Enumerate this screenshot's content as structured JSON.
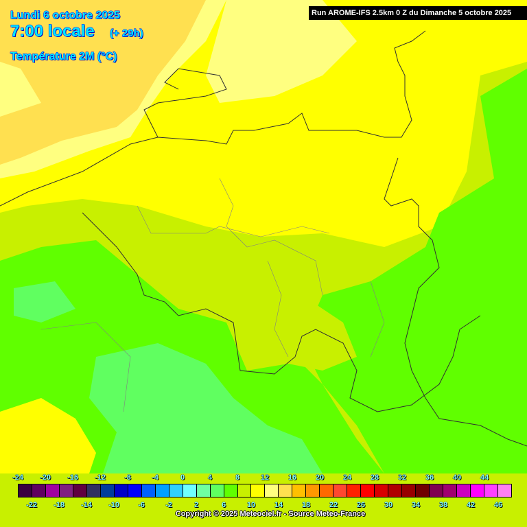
{
  "header": {
    "date": "Lundi 6 octobre 2025",
    "time": "7:00 locale",
    "offset": "(+ 29h)",
    "parameter": "Température 2M (°C)",
    "run": "Run AROME-IFS 2.5km 0 Z du Dimanche 5 octobre 2025"
  },
  "legend": {
    "top_labels": [
      "-24",
      "-20",
      "-16",
      "-12",
      "-8",
      "-4",
      "0",
      "4",
      "8",
      "12",
      "16",
      "20",
      "24",
      "28",
      "32",
      "36",
      "40",
      "44"
    ],
    "bottom_labels": [
      "-22",
      "-18",
      "-14",
      "-10",
      "-6",
      "-2",
      "2",
      "6",
      "10",
      "14",
      "18",
      "22",
      "26",
      "30",
      "34",
      "38",
      "42",
      "46"
    ],
    "colors": [
      "#3a0040",
      "#600060",
      "#a000a0",
      "#802080",
      "#600040",
      "#303060",
      "#003c9c",
      "#0000c8",
      "#0000ff",
      "#0060ff",
      "#00a0ff",
      "#30d0ff",
      "#70ffff",
      "#70ffa0",
      "#60ff60",
      "#60ff00",
      "#c8f000",
      "#ffff00",
      "#ffff80",
      "#ffe050",
      "#ffc000",
      "#ff9800",
      "#ff6800",
      "#ff4830",
      "#ff2000",
      "#ff0000",
      "#d80000",
      "#b00000",
      "#980000",
      "#700000",
      "#800050",
      "#a00070",
      "#cc00c0",
      "#ff00ff",
      "#ff40ff",
      "#ff80f0"
    ]
  },
  "copyright": "Copyright © 2025 Meteociel.fr - Source Meteo-France"
}
